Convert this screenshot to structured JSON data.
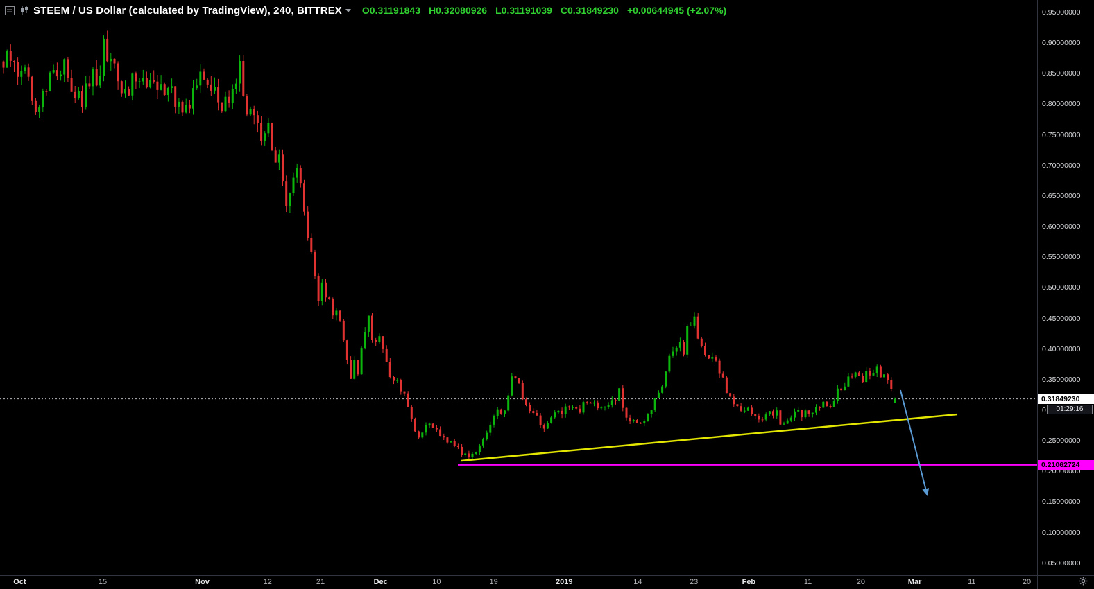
{
  "header": {
    "title": "STEEM / US Dollar (calculated by TradingView), 240, BITTREX",
    "ohlc": [
      {
        "label": "O",
        "value": "0.31191843"
      },
      {
        "label": "H",
        "value": "0.32080926"
      },
      {
        "label": "L",
        "value": "0.31191039"
      },
      {
        "label": "C",
        "value": "0.31849230"
      }
    ],
    "change": "+0.00644945",
    "change_pct": "(+2.07%)",
    "green": "#30d030"
  },
  "price_axis": {
    "ticks": [
      {
        "label": "0.95000000",
        "price": 0.95
      },
      {
        "label": "0.90000000",
        "price": 0.9
      },
      {
        "label": "0.85000000",
        "price": 0.85
      },
      {
        "label": "0.80000000",
        "price": 0.8
      },
      {
        "label": "0.75000000",
        "price": 0.75
      },
      {
        "label": "0.70000000",
        "price": 0.7
      },
      {
        "label": "0.65000000",
        "price": 0.65
      },
      {
        "label": "0.60000000",
        "price": 0.6
      },
      {
        "label": "0.55000000",
        "price": 0.55
      },
      {
        "label": "0.50000000",
        "price": 0.5
      },
      {
        "label": "0.45000000",
        "price": 0.45
      },
      {
        "label": "0.40000000",
        "price": 0.4
      },
      {
        "label": "0.35000000",
        "price": 0.35
      },
      {
        "label": "0.30000000",
        "price": 0.3
      },
      {
        "label": "0.25000000",
        "price": 0.25
      },
      {
        "label": "0.20000000",
        "price": 0.2
      },
      {
        "label": "0.15000000",
        "price": 0.15
      },
      {
        "label": "0.10000000",
        "price": 0.1
      },
      {
        "label": "0.05000000",
        "price": 0.05
      }
    ],
    "current_price_label": "0.31849230",
    "countdown": "01:29:16",
    "support_label": "0.21062724"
  },
  "time_axis": {
    "labels": [
      {
        "label": "Oct",
        "f": 0.019,
        "strong": true
      },
      {
        "label": "15",
        "f": 0.099,
        "strong": false
      },
      {
        "label": "Nov",
        "f": 0.195,
        "strong": true
      },
      {
        "label": "12",
        "f": 0.258,
        "strong": false
      },
      {
        "label": "21",
        "f": 0.309,
        "strong": false
      },
      {
        "label": "Dec",
        "f": 0.367,
        "strong": true
      },
      {
        "label": "10",
        "f": 0.421,
        "strong": false
      },
      {
        "label": "19",
        "f": 0.476,
        "strong": false
      },
      {
        "label": "2019",
        "f": 0.544,
        "strong": true
      },
      {
        "label": "14",
        "f": 0.615,
        "strong": false
      },
      {
        "label": "23",
        "f": 0.669,
        "strong": false
      },
      {
        "label": "Feb",
        "f": 0.722,
        "strong": true
      },
      {
        "label": "11",
        "f": 0.779,
        "strong": false
      },
      {
        "label": "20",
        "f": 0.83,
        "strong": false
      },
      {
        "label": "Mar",
        "f": 0.882,
        "strong": true
      },
      {
        "label": "11",
        "f": 0.937,
        "strong": false
      },
      {
        "label": "20",
        "f": 0.99,
        "strong": false
      }
    ]
  },
  "chart_data": {
    "type": "candlestick",
    "title": "STEEM / US Dollar (calculated by TradingView), 240, BITTREX",
    "exchange": "BITTREX",
    "interval_minutes": 240,
    "ohlc": {
      "open": 0.31191843,
      "high": 0.32080926,
      "low": 0.31191039,
      "close": 0.3184923,
      "change": 0.00644945,
      "change_pct": 2.07
    },
    "current_price": 0.3184923,
    "countdown": "01:29:16",
    "ylim": [
      0.05,
      0.95
    ],
    "last_candle": [
      0.31191843,
      0.32080926,
      0.31191039,
      0.3184923
    ],
    "price_keypoints": [
      [
        0.0,
        0.87
      ],
      [
        0.019,
        0.85
      ],
      [
        0.039,
        0.8
      ],
      [
        0.062,
        0.87
      ],
      [
        0.091,
        0.81
      ],
      [
        0.109,
        0.86
      ],
      [
        0.113,
        0.915
      ],
      [
        0.118,
        0.858
      ],
      [
        0.137,
        0.82
      ],
      [
        0.152,
        0.85
      ],
      [
        0.183,
        0.83
      ],
      [
        0.203,
        0.8
      ],
      [
        0.226,
        0.845
      ],
      [
        0.245,
        0.8
      ],
      [
        0.262,
        0.818
      ],
      [
        0.265,
        0.875
      ],
      [
        0.268,
        0.81
      ],
      [
        0.28,
        0.765
      ],
      [
        0.296,
        0.755
      ],
      [
        0.311,
        0.7
      ],
      [
        0.318,
        0.645
      ],
      [
        0.323,
        0.665
      ],
      [
        0.331,
        0.69
      ],
      [
        0.338,
        0.62
      ],
      [
        0.344,
        0.56
      ],
      [
        0.35,
        0.5
      ],
      [
        0.354,
        0.465
      ],
      [
        0.358,
        0.5
      ],
      [
        0.37,
        0.45
      ],
      [
        0.376,
        0.47
      ],
      [
        0.381,
        0.43
      ],
      [
        0.385,
        0.385
      ],
      [
        0.389,
        0.35
      ],
      [
        0.393,
        0.38
      ],
      [
        0.397,
        0.35
      ],
      [
        0.409,
        0.465
      ],
      [
        0.416,
        0.4
      ],
      [
        0.423,
        0.43
      ],
      [
        0.432,
        0.36
      ],
      [
        0.44,
        0.345
      ],
      [
        0.447,
        0.33
      ],
      [
        0.455,
        0.3
      ],
      [
        0.463,
        0.262
      ],
      [
        0.467,
        0.25
      ],
      [
        0.475,
        0.28
      ],
      [
        0.49,
        0.262
      ],
      [
        0.498,
        0.252
      ],
      [
        0.51,
        0.24
      ],
      [
        0.52,
        0.222
      ],
      [
        0.526,
        0.226
      ],
      [
        0.533,
        0.246
      ],
      [
        0.541,
        0.262
      ],
      [
        0.549,
        0.286
      ],
      [
        0.553,
        0.3
      ],
      [
        0.557,
        0.292
      ],
      [
        0.563,
        0.31
      ],
      [
        0.572,
        0.356
      ],
      [
        0.576,
        0.346
      ],
      [
        0.58,
        0.33
      ],
      [
        0.588,
        0.3
      ],
      [
        0.6,
        0.282
      ],
      [
        0.607,
        0.272
      ],
      [
        0.615,
        0.29
      ],
      [
        0.626,
        0.3
      ],
      [
        0.631,
        0.308
      ],
      [
        0.642,
        0.298
      ],
      [
        0.658,
        0.318
      ],
      [
        0.673,
        0.3
      ],
      [
        0.685,
        0.31
      ],
      [
        0.691,
        0.33
      ],
      [
        0.696,
        0.3
      ],
      [
        0.707,
        0.282
      ],
      [
        0.712,
        0.27
      ],
      [
        0.723,
        0.292
      ],
      [
        0.728,
        0.31
      ],
      [
        0.739,
        0.345
      ],
      [
        0.743,
        0.37
      ],
      [
        0.751,
        0.4
      ],
      [
        0.759,
        0.42
      ],
      [
        0.763,
        0.4
      ],
      [
        0.767,
        0.43
      ],
      [
        0.774,
        0.453
      ],
      [
        0.778,
        0.42
      ],
      [
        0.786,
        0.4
      ],
      [
        0.794,
        0.382
      ],
      [
        0.802,
        0.37
      ],
      [
        0.809,
        0.34
      ],
      [
        0.817,
        0.31
      ],
      [
        0.829,
        0.29
      ],
      [
        0.837,
        0.3
      ],
      [
        0.848,
        0.29
      ],
      [
        0.852,
        0.282
      ],
      [
        0.86,
        0.3
      ],
      [
        0.868,
        0.292
      ],
      [
        0.872,
        0.272
      ],
      [
        0.879,
        0.29
      ],
      [
        0.891,
        0.3
      ],
      [
        0.899,
        0.292
      ],
      [
        0.909,
        0.3
      ],
      [
        0.918,
        0.31
      ],
      [
        0.926,
        0.3
      ],
      [
        0.93,
        0.318
      ],
      [
        0.941,
        0.34
      ],
      [
        0.949,
        0.35
      ],
      [
        0.957,
        0.36
      ],
      [
        0.965,
        0.35
      ],
      [
        0.972,
        0.36
      ],
      [
        0.98,
        0.368
      ],
      [
        0.988,
        0.355
      ],
      [
        1.0,
        0.318
      ]
    ],
    "support_line": {
      "price": 0.21062724,
      "x_start": 0.4415,
      "color": "#ff00ff"
    },
    "trendline": {
      "x1": 0.4448,
      "p1": 0.2173,
      "x2": 0.9231,
      "p2": 0.2931,
      "color": "#e2e600"
    },
    "arrow": {
      "x1": 0.8682,
      "p1": 0.3328,
      "x2": 0.8943,
      "p2": 0.1595,
      "color": "#5b9bd5"
    },
    "colors": {
      "up": "#0cb50c",
      "down": "#e13232",
      "dotted": "#b7b9bf"
    }
  }
}
